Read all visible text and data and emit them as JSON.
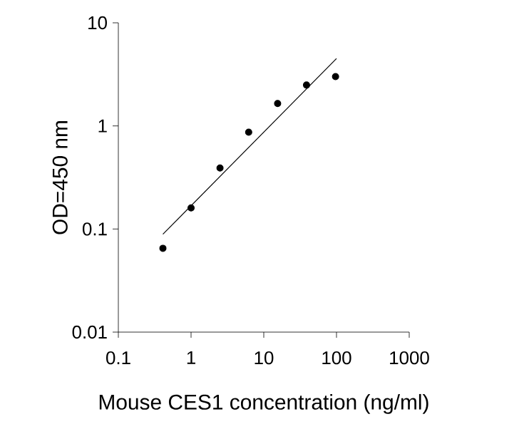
{
  "chart_data": {
    "type": "scatter",
    "xlabel": "Mouse CES1 concentration (ng/ml)",
    "ylabel": "OD=450 nm",
    "log": "xy",
    "grid": false,
    "xlim": [
      0.1,
      1000
    ],
    "ylim": [
      0.01,
      10
    ],
    "xticks": [
      0.1,
      1,
      10,
      100,
      1000
    ],
    "yticks": [
      0.01,
      0.1,
      1,
      10
    ],
    "series": [
      {
        "type": "scatter",
        "marker": "circle",
        "color": "#000000",
        "x": [
          0.41,
          1.0,
          2.5,
          6.2,
          15.5,
          38.7,
          97
        ],
        "values": [
          0.065,
          0.16,
          0.39,
          0.87,
          1.65,
          2.49,
          3.01
        ]
      },
      {
        "type": "line",
        "color": "#000000",
        "marker": "none",
        "x": [
          0.41,
          100
        ],
        "values": [
          0.089,
          4.5
        ]
      }
    ]
  }
}
